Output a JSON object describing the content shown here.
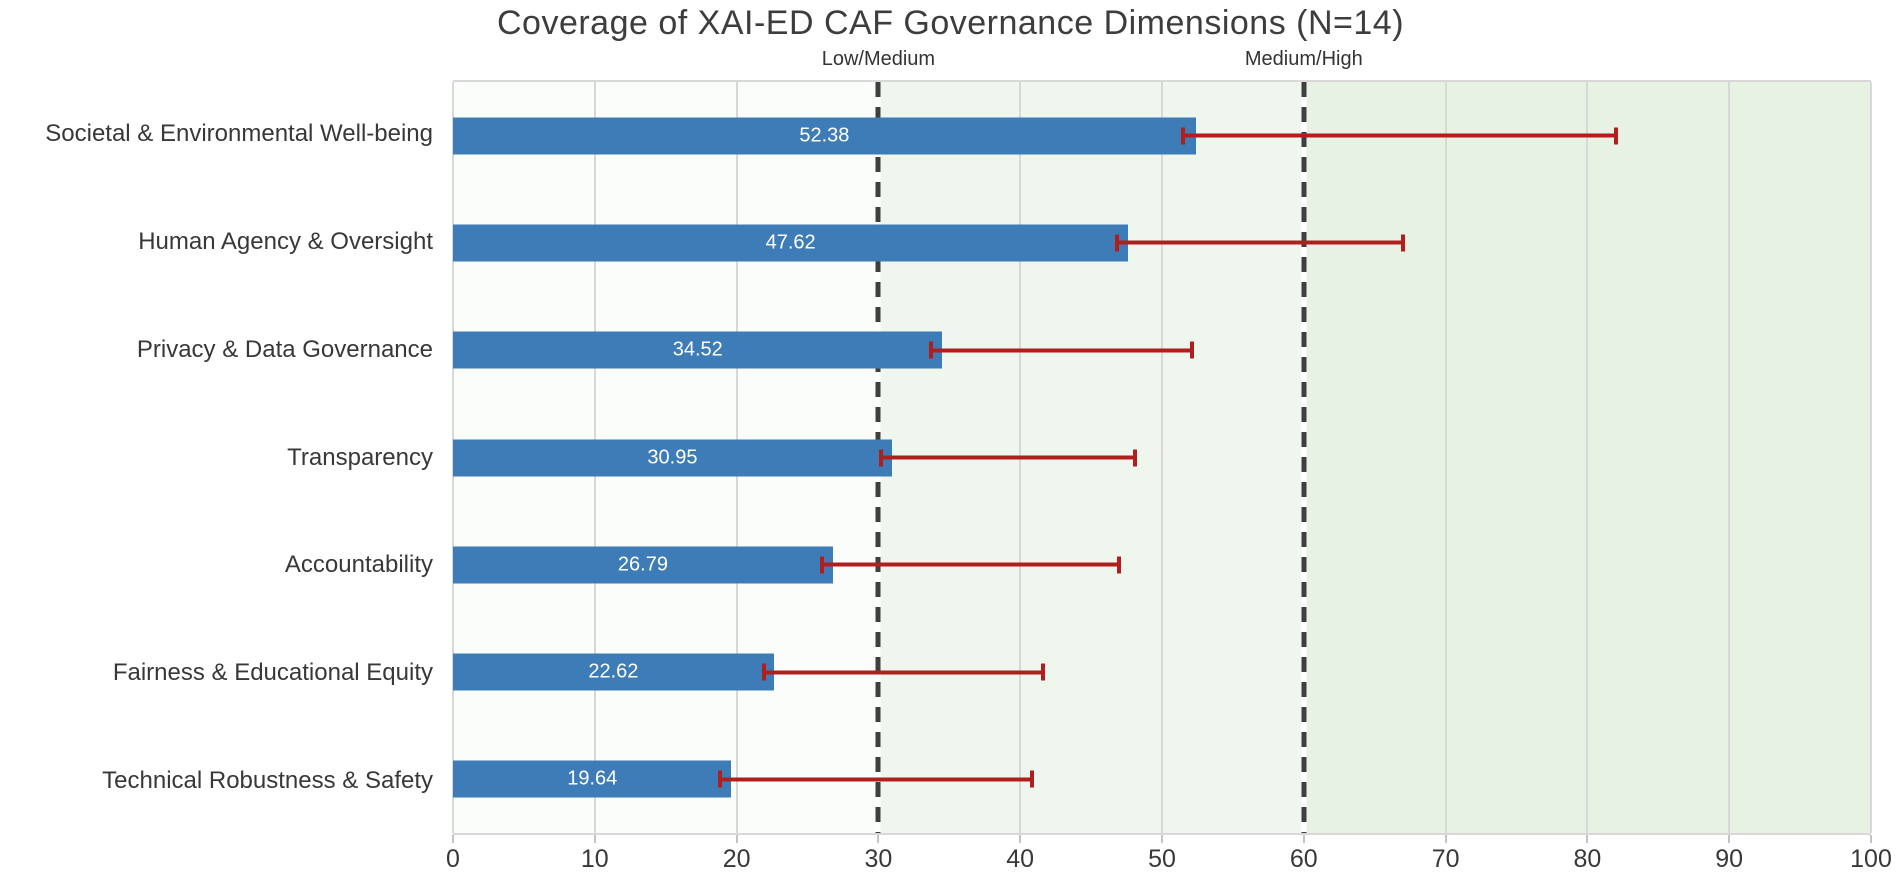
{
  "chart_data": {
    "type": "bar",
    "orientation": "horizontal",
    "title": "Coverage of XAI-ED CAF Governance Dimensions (N=14)",
    "categories": [
      "Societal & Environmental Well-being",
      "Human Agency & Oversight",
      "Privacy & Data Governance",
      "Transparency",
      "Accountability",
      "Fairness & Educational Equity",
      "Technical Robustness & Safety"
    ],
    "values": [
      52.38,
      47.62,
      34.52,
      30.95,
      26.79,
      22.62,
      19.64
    ],
    "value_labels": [
      "52.38",
      "47.62",
      "34.52",
      "30.95",
      "26.79",
      "22.62",
      "19.64"
    ],
    "error_bars": [
      {
        "low": 51.5,
        "high": 82.0
      },
      {
        "low": 46.8,
        "high": 67.0
      },
      {
        "low": 33.7,
        "high": 52.1
      },
      {
        "low": 30.2,
        "high": 48.1
      },
      {
        "low": 26.0,
        "high": 47.0
      },
      {
        "low": 21.9,
        "high": 41.6
      },
      {
        "low": 18.8,
        "high": 40.8
      }
    ],
    "xlim": [
      0,
      100
    ],
    "xticks": [
      0,
      10,
      20,
      30,
      40,
      50,
      60,
      70,
      80,
      90,
      100
    ],
    "grid": true,
    "legend": "none",
    "thresholds": [
      {
        "value": 30,
        "label": "Low/Medium"
      },
      {
        "value": 60,
        "label": "Medium/High"
      }
    ],
    "zones": [
      {
        "name": "low",
        "from": 0,
        "to": 30,
        "color": "#fbfdfa"
      },
      {
        "name": "medium",
        "from": 30,
        "to": 60,
        "color": "#eff6ed"
      },
      {
        "name": "high",
        "from": 60,
        "to": 100,
        "color": "#e7f1e4"
      }
    ],
    "colors": {
      "bar": "#3e7cb7",
      "bar_label_text": "#ffffff",
      "error_bar": "#b01e1e",
      "gridline": "#d8d8d8",
      "threshold_line": "#3f3f3f",
      "axis_text": "#383838",
      "title_text": "#3d3d3d"
    }
  }
}
